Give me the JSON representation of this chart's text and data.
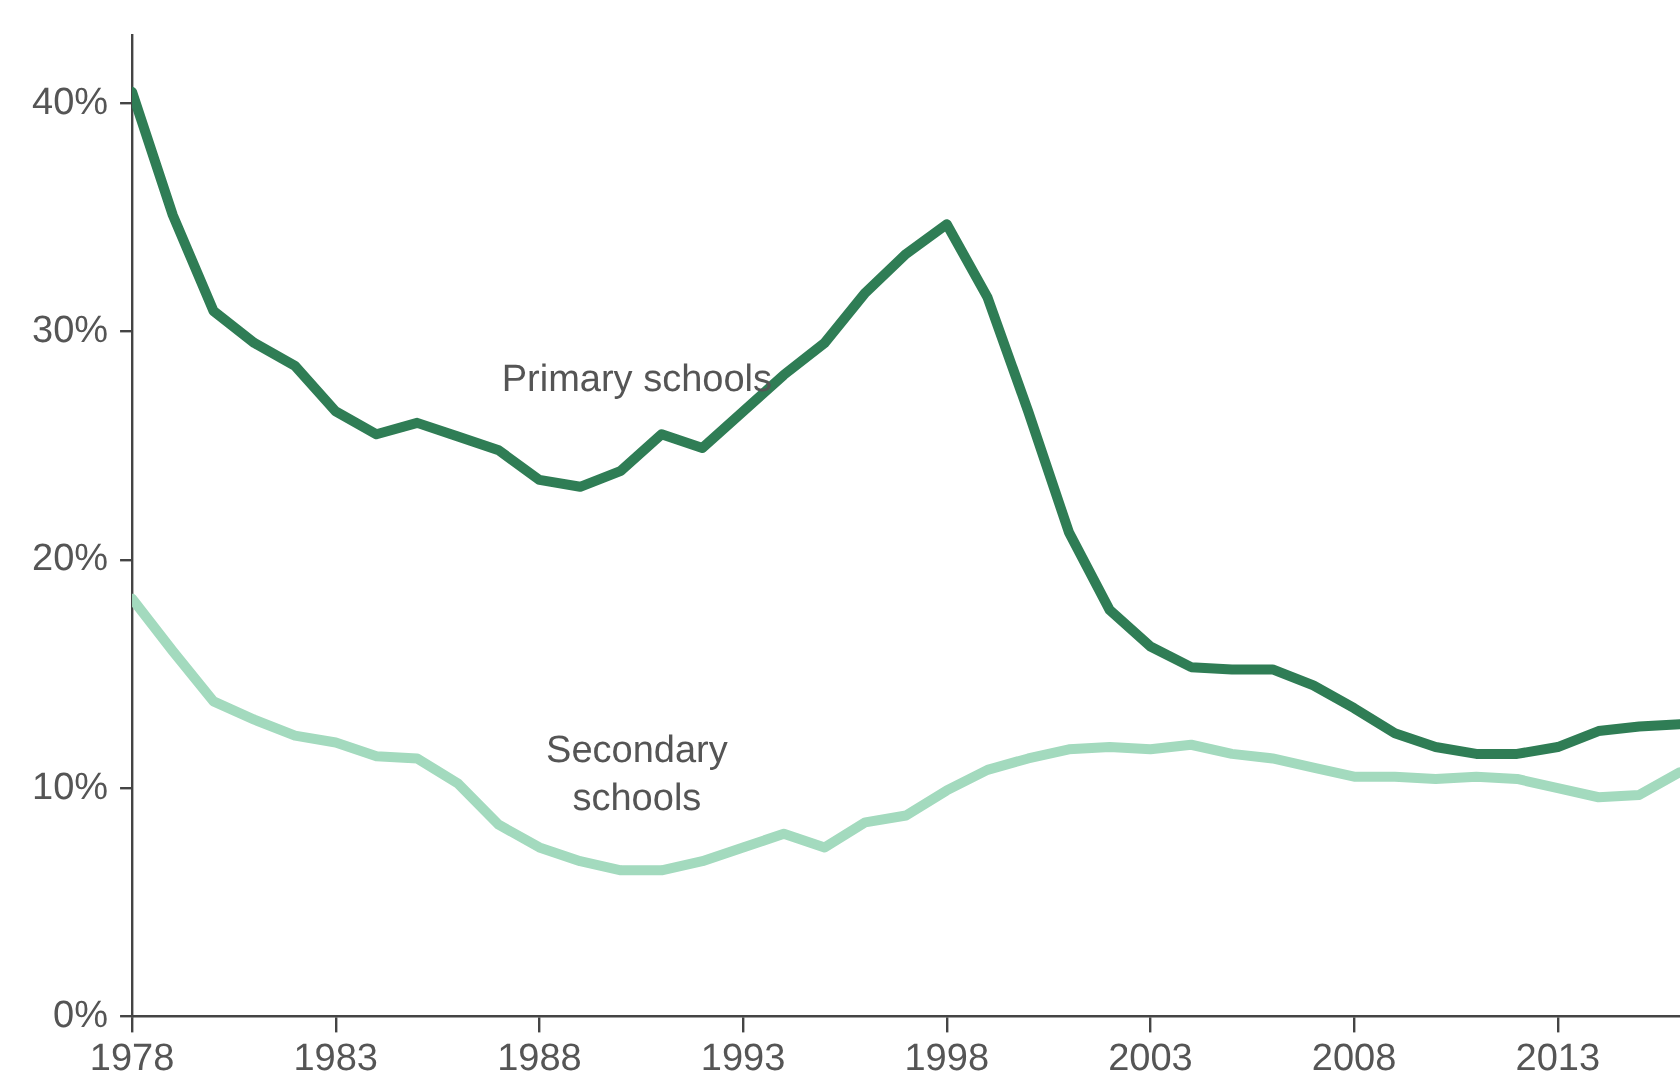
{
  "chart_data": {
    "type": "line",
    "x": [
      1978,
      1979,
      1980,
      1981,
      1982,
      1983,
      1984,
      1985,
      1986,
      1987,
      1988,
      1989,
      1990,
      1991,
      1992,
      1993,
      1994,
      1995,
      1996,
      1997,
      1998,
      1999,
      2000,
      2001,
      2002,
      2003,
      2004,
      2005,
      2006,
      2007,
      2008,
      2009,
      2010,
      2011,
      2012,
      2013,
      2014,
      2015,
      2016
    ],
    "series": [
      {
        "name": "Primary schools",
        "color": "#2f7d55",
        "values": [
          40.5,
          35.1,
          30.9,
          29.5,
          28.5,
          26.5,
          25.5,
          26.0,
          25.4,
          24.8,
          23.5,
          23.2,
          23.9,
          25.5,
          24.9,
          26.5,
          28.1,
          29.5,
          31.7,
          33.4,
          34.7,
          31.5,
          26.5,
          21.2,
          17.8,
          16.2,
          15.3,
          15.2,
          15.2,
          14.5,
          13.5,
          12.4,
          11.8,
          11.5,
          11.5,
          11.8,
          12.5,
          12.7,
          12.8
        ]
      },
      {
        "name": "Secondary schools",
        "color": "#a3dabe",
        "values": [
          18.3,
          16.0,
          13.8,
          13.0,
          12.3,
          12.0,
          11.4,
          11.3,
          10.2,
          8.4,
          7.4,
          6.8,
          6.4,
          6.4,
          6.8,
          7.4,
          8.0,
          7.4,
          8.5,
          8.8,
          9.9,
          10.8,
          11.3,
          11.7,
          11.8,
          11.7,
          11.9,
          11.5,
          11.3,
          10.9,
          10.5,
          10.5,
          10.4,
          10.5,
          10.4,
          10.0,
          9.6,
          9.7,
          10.7
        ]
      }
    ],
    "xlim": [
      1978,
      2016
    ],
    "xticks": [
      1978,
      1983,
      1988,
      1993,
      1998,
      2003,
      2008,
      2013
    ],
    "ylim": [
      0,
      43
    ],
    "yticks": [
      {
        "value": 0,
        "label": "0%"
      },
      {
        "value": 10,
        "label": "10%"
      },
      {
        "value": 20,
        "label": "20%"
      },
      {
        "value": 30,
        "label": "30%"
      },
      {
        "value": 40,
        "label": "40%"
      }
    ],
    "grid": false,
    "legend": false,
    "marker": "none",
    "line_style": "solid"
  }
}
